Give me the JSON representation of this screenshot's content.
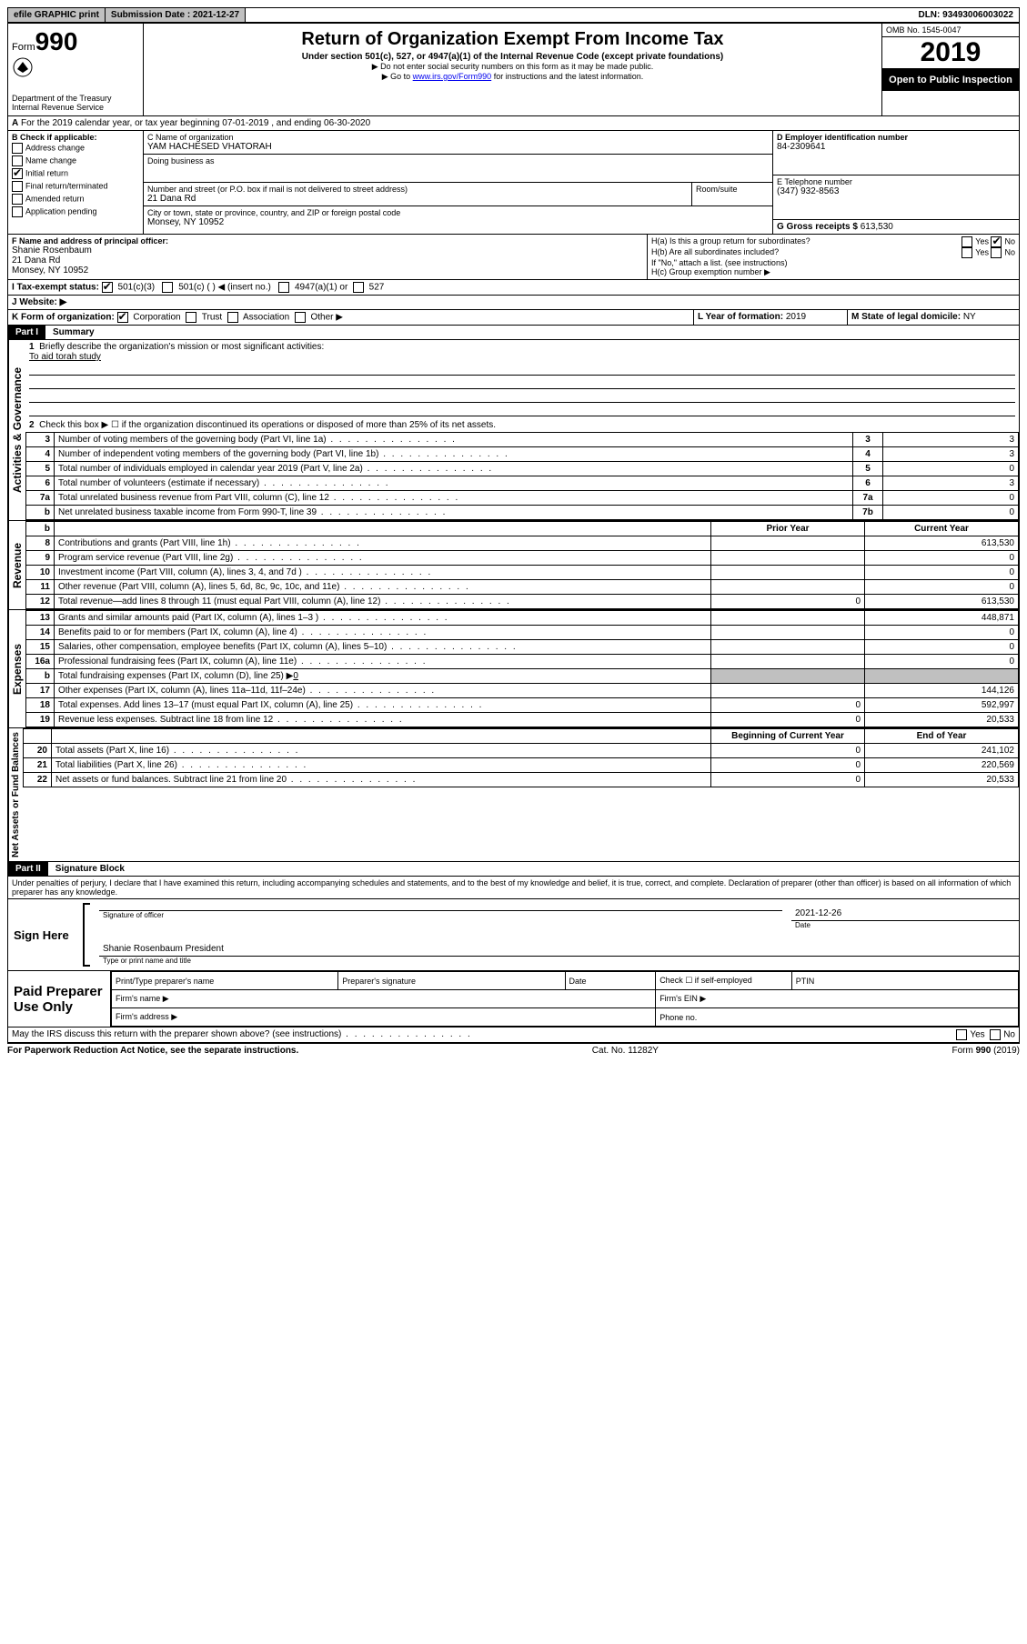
{
  "topbar": {
    "efile": "efile GRAPHIC print",
    "submission": "Submission Date : 2021-12-27",
    "dln": "DLN: 93493006003022"
  },
  "header": {
    "form_word": "Form",
    "form_num": "990",
    "dept": "Department of the Treasury",
    "irs": "Internal Revenue Service",
    "title": "Return of Organization Exempt From Income Tax",
    "sub1": "Under section 501(c), 527, or 4947(a)(1) of the Internal Revenue Code (except private foundations)",
    "note1": "▶ Do not enter social security numbers on this form as it may be made public.",
    "note2_pre": "▶ Go to ",
    "note2_link": "www.irs.gov/Form990",
    "note2_post": " for instructions and the latest information.",
    "omb": "OMB No. 1545-0047",
    "year": "2019",
    "inspect": "Open to Public Inspection"
  },
  "line_a": "For the 2019 calendar year, or tax year beginning 07-01-2019   , and ending 06-30-2020",
  "b": {
    "label": "B Check if applicable:",
    "addr": "Address change",
    "name": "Name change",
    "initial": "Initial return",
    "final": "Final return/terminated",
    "amended": "Amended return",
    "app": "Application pending"
  },
  "c": {
    "label_name": "C Name of organization",
    "org": "YAM HACHESED VHATORAH",
    "dba": "Doing business as",
    "street_label": "Number and street (or P.O. box if mail is not delivered to street address)",
    "room": "Room/suite",
    "street": "21 Dana Rd",
    "city_label": "City or town, state or province, country, and ZIP or foreign postal code",
    "city": "Monsey, NY  10952"
  },
  "d": {
    "label": "D Employer identification number",
    "val": "84-2309641"
  },
  "e": {
    "label": "E Telephone number",
    "val": "(347) 932-8563"
  },
  "g": {
    "label": "G Gross receipts $",
    "val": "613,530"
  },
  "f": {
    "label": "F  Name and address of principal officer:",
    "name": "Shanie Rosenbaum",
    "street": "21 Dana Rd",
    "city": "Monsey, NY  10952"
  },
  "h": {
    "a": "H(a)  Is this a group return for subordinates?",
    "b": "H(b)  Are all subordinates included?",
    "note": "If \"No,\" attach a list. (see instructions)",
    "c": "H(c)  Group exemption number ▶",
    "yes": "Yes",
    "no": "No"
  },
  "i": {
    "label": "I   Tax-exempt status:",
    "c3": "501(c)(3)",
    "c": "501(c) (  ) ◀ (insert no.)",
    "a1": "4947(a)(1) or",
    "s527": "527"
  },
  "j": "J   Website: ▶",
  "k": {
    "label": "K Form of organization:",
    "corp": "Corporation",
    "trust": "Trust",
    "assoc": "Association",
    "other": "Other ▶"
  },
  "l": {
    "label": "L Year of formation:",
    "val": "2019"
  },
  "m": {
    "label": "M State of legal domicile:",
    "val": "NY"
  },
  "part1": {
    "num": "Part I",
    "title": "Summary"
  },
  "vlabels": {
    "gov": "Activities & Governance",
    "rev": "Revenue",
    "exp": "Expenses",
    "net": "Net Assets or Fund Balances"
  },
  "s1": {
    "q1": "Briefly describe the organization's mission or most significant activities:",
    "a1": "To aid torah study",
    "q2": "Check this box ▶ ☐  if the organization discontinued its operations or disposed of more than 25% of its net assets.",
    "rows": [
      {
        "n": "3",
        "t": "Number of voting members of the governing body (Part VI, line 1a)",
        "rn": "3",
        "v": "3"
      },
      {
        "n": "4",
        "t": "Number of independent voting members of the governing body (Part VI, line 1b)",
        "rn": "4",
        "v": "3"
      },
      {
        "n": "5",
        "t": "Total number of individuals employed in calendar year 2019 (Part V, line 2a)",
        "rn": "5",
        "v": "0"
      },
      {
        "n": "6",
        "t": "Total number of volunteers (estimate if necessary)",
        "rn": "6",
        "v": "3"
      },
      {
        "n": "7a",
        "t": "Total unrelated business revenue from Part VIII, column (C), line 12",
        "rn": "7a",
        "v": "0"
      },
      {
        "n": "b",
        "t": "Net unrelated business taxable income from Form 990-T, line 39",
        "rn": "7b",
        "v": "0"
      }
    ],
    "hdr_b": "b",
    "prior": "Prior Year",
    "current": "Current Year",
    "rev": [
      {
        "n": "8",
        "t": "Contributions and grants (Part VIII, line 1h)",
        "p": "",
        "c": "613,530"
      },
      {
        "n": "9",
        "t": "Program service revenue (Part VIII, line 2g)",
        "p": "",
        "c": "0"
      },
      {
        "n": "10",
        "t": "Investment income (Part VIII, column (A), lines 3, 4, and 7d )",
        "p": "",
        "c": "0"
      },
      {
        "n": "11",
        "t": "Other revenue (Part VIII, column (A), lines 5, 6d, 8c, 9c, 10c, and 11e)",
        "p": "",
        "c": "0"
      },
      {
        "n": "12",
        "t": "Total revenue—add lines 8 through 11 (must equal Part VIII, column (A), line 12)",
        "p": "0",
        "c": "613,530"
      }
    ],
    "exp": [
      {
        "n": "13",
        "t": "Grants and similar amounts paid (Part IX, column (A), lines 1–3 )",
        "p": "",
        "c": "448,871"
      },
      {
        "n": "14",
        "t": "Benefits paid to or for members (Part IX, column (A), line 4)",
        "p": "",
        "c": "0"
      },
      {
        "n": "15",
        "t": "Salaries, other compensation, employee benefits (Part IX, column (A), lines 5–10)",
        "p": "",
        "c": "0"
      },
      {
        "n": "16a",
        "t": "Professional fundraising fees (Part IX, column (A), line 11e)",
        "p": "",
        "c": "0"
      }
    ],
    "exp16b": {
      "n": "b",
      "t": "Total fundraising expenses (Part IX, column (D), line 25) ▶",
      "v": "0"
    },
    "exp2": [
      {
        "n": "17",
        "t": "Other expenses (Part IX, column (A), lines 11a–11d, 11f–24e)",
        "p": "",
        "c": "144,126"
      },
      {
        "n": "18",
        "t": "Total expenses. Add lines 13–17 (must equal Part IX, column (A), line 25)",
        "p": "0",
        "c": "592,997"
      },
      {
        "n": "19",
        "t": "Revenue less expenses. Subtract line 18 from line 12",
        "p": "0",
        "c": "20,533"
      }
    ],
    "begin": "Beginning of Current Year",
    "end": "End of Year",
    "net": [
      {
        "n": "20",
        "t": "Total assets (Part X, line 16)",
        "p": "0",
        "c": "241,102"
      },
      {
        "n": "21",
        "t": "Total liabilities (Part X, line 26)",
        "p": "0",
        "c": "220,569"
      },
      {
        "n": "22",
        "t": "Net assets or fund balances. Subtract line 21 from line 20",
        "p": "0",
        "c": "20,533"
      }
    ]
  },
  "part2": {
    "num": "Part II",
    "title": "Signature Block"
  },
  "perjury": "Under penalties of perjury, I declare that I have examined this return, including accompanying schedules and statements, and to the best of my knowledge and belief, it is true, correct, and complete. Declaration of preparer (other than officer) is based on all information of which preparer has any knowledge.",
  "sign": {
    "here": "Sign Here",
    "sig_of": "Signature of officer",
    "date": "Date",
    "date_val": "2021-12-26",
    "typed": "Shanie Rosenbaum  President",
    "typed_label": "Type or print name and title"
  },
  "paid": {
    "title": "Paid Preparer Use Only",
    "h1": "Print/Type preparer's name",
    "h2": "Preparer's signature",
    "h3": "Date",
    "h4_pre": "Check ☐ if self-employed",
    "h5": "PTIN",
    "firm_name": "Firm's name    ▶",
    "firm_ein": "Firm's EIN ▶",
    "firm_addr": "Firm's address ▶",
    "phone": "Phone no."
  },
  "discuss": "May the IRS discuss this return with the preparer shown above? (see instructions)",
  "footer": {
    "pra": "For Paperwork Reduction Act Notice, see the separate instructions.",
    "cat": "Cat. No. 11282Y",
    "form": "Form 990 (2019)"
  }
}
